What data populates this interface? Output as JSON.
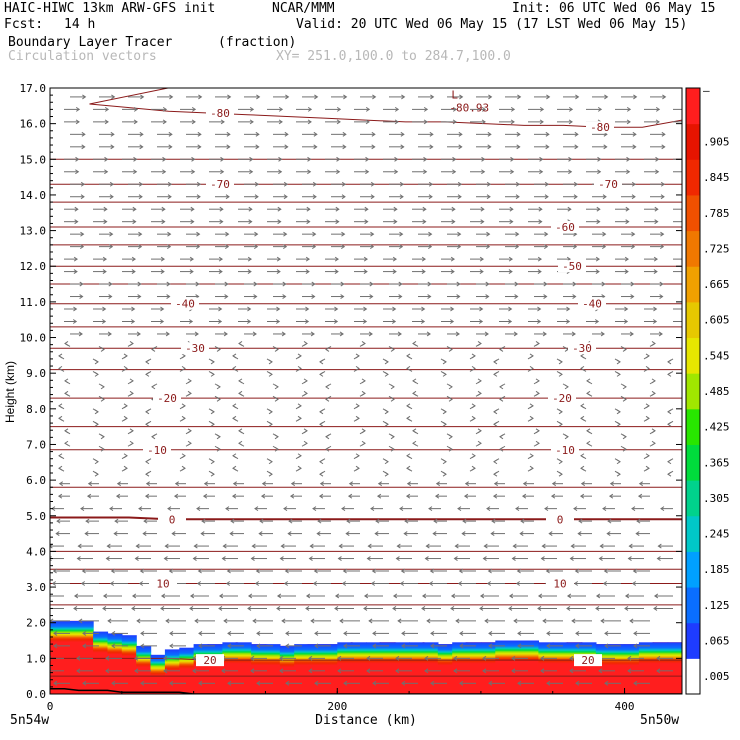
{
  "header": {
    "model": "HAIC-HIWC 13km ARW-GFS init",
    "institution": "NCAR/MMM",
    "init": "Init: 06 UTC Wed 06 May 15",
    "fcst_label": "Fcst:",
    "fcst_value": "14 h",
    "valid": "Valid: 20 UTC Wed 06 May 15 (17 LST Wed 06 May 15)",
    "field_name": "Boundary Layer Tracer",
    "field_units": "(fraction)",
    "vector_name": "Circulation vectors",
    "xy_range": "XY= 251.0,100.0 to 284.7,100.0"
  },
  "colors": {
    "contour": "#8b1a1a",
    "vector": "#707070",
    "axis": "#000000"
  },
  "chart_data": {
    "type": "heatmap",
    "ylabel": "Height (km)",
    "xlabel": "Distance (km)",
    "ylim": [
      0,
      17
    ],
    "xlim": [
      0,
      440
    ],
    "yticks": [
      "0.0",
      "1.0",
      "2.0",
      "3.0",
      "4.0",
      "5.0",
      "6.0",
      "7.0",
      "8.0",
      "9.0",
      "10.0",
      "11.0",
      "12.0",
      "13.0",
      "14.0",
      "15.0",
      "16.0",
      "17.0"
    ],
    "xticks": [
      {
        "value": 0,
        "label": "0"
      },
      {
        "value": 200,
        "label": "200"
      },
      {
        "value": 400,
        "label": "400"
      }
    ],
    "x_end_labels": {
      "left": "5n54w",
      "right": "5n50w"
    },
    "colorbar": {
      "labels": [
        ".005",
        ".065",
        ".125",
        ".185",
        ".245",
        ".305",
        ".365",
        ".425",
        ".485",
        ".545",
        ".605",
        ".665",
        ".725",
        ".785",
        ".845",
        ".905",
        "–"
      ],
      "colors": [
        "#ffffff",
        "#1e3cff",
        "#0a6eff",
        "#00a0ff",
        "#00c8c8",
        "#00d28c",
        "#00dc3c",
        "#28e600",
        "#a0e600",
        "#e6e600",
        "#e6c800",
        "#f0a000",
        "#f07800",
        "#f05000",
        "#f02800",
        "#e61400",
        "#ff1e1e"
      ]
    },
    "temperature_contours": [
      {
        "label": "-80",
        "y": [
          16.7,
          16.55,
          16.45,
          16.35,
          16.3,
          16.25,
          16.2,
          16.15,
          16.1,
          16.05,
          16.05,
          16.0,
          15.95,
          15.95,
          15.9,
          15.9,
          16.1
        ]
      },
      {
        "label": "-70",
        "y": [
          14.3,
          14.3,
          14.3,
          14.3,
          14.3,
          14.3,
          14.3,
          14.3,
          14.3,
          14.3,
          14.3,
          14.3,
          14.3,
          14.3,
          14.3,
          14.3,
          14.3
        ]
      },
      {
        "label": "-60",
        "y": [
          13.1,
          13.1,
          13.1,
          13.1,
          13.1,
          13.1,
          13.1,
          13.1,
          13.1,
          13.1,
          13.1,
          13.1,
          13.1,
          13.1,
          13.1,
          13.1,
          13.1
        ]
      },
      {
        "label": "-50",
        "y": [
          12.0,
          12.0,
          12.0,
          12.0,
          12.0,
          12.0,
          12.0,
          12.0,
          12.0,
          12.0,
          12.0,
          12.0,
          12.0,
          12.0,
          12.0,
          12.0,
          12.0
        ]
      },
      {
        "label": "-40",
        "y": [
          10.95,
          10.95,
          10.95,
          10.95,
          10.95,
          10.95,
          10.95,
          10.95,
          10.95,
          10.95,
          10.95,
          10.95,
          10.95,
          10.95,
          10.95,
          10.95,
          10.95
        ]
      },
      {
        "label": "-30",
        "y": [
          9.7,
          9.7,
          9.7,
          9.7,
          9.7,
          9.7,
          9.7,
          9.7,
          9.7,
          9.7,
          9.7,
          9.7,
          9.7,
          9.7,
          9.7,
          9.7,
          9.7
        ]
      },
      {
        "label": "-20",
        "y": [
          8.3,
          8.3,
          8.3,
          8.3,
          8.3,
          8.3,
          8.3,
          8.3,
          8.3,
          8.3,
          8.3,
          8.3,
          8.3,
          8.3,
          8.3,
          8.3,
          8.3
        ]
      },
      {
        "label": "-10",
        "y": [
          6.85,
          6.85,
          6.85,
          6.85,
          6.85,
          6.85,
          6.85,
          6.85,
          6.85,
          6.85,
          6.85,
          6.85,
          6.85,
          6.85,
          6.85,
          6.85,
          6.85
        ]
      },
      {
        "label": "0",
        "y": [
          4.95,
          4.95,
          4.95,
          4.9,
          4.9,
          4.9,
          4.9,
          4.9,
          4.9,
          4.9,
          4.9,
          4.9,
          4.9,
          4.9,
          4.9,
          4.9,
          4.9
        ]
      },
      {
        "label": "10",
        "y": [
          3.1,
          3.1,
          3.1,
          3.1,
          3.1,
          3.1,
          3.1,
          3.1,
          3.1,
          3.1,
          3.1,
          3.1,
          3.1,
          3.1,
          3.1,
          3.1,
          3.1
        ]
      },
      {
        "label": "20",
        "y": [
          1.0,
          1.0,
          1.0,
          1.0,
          0.95,
          0.95,
          0.95,
          0.95,
          0.95,
          0.95,
          0.95,
          0.95,
          0.95,
          0.95,
          0.95,
          0.95,
          0.95
        ]
      }
    ],
    "other_isotherms_y": [
      15.0,
      13.8,
      12.6,
      11.5,
      10.3,
      9.1,
      7.5,
      5.8,
      4.0,
      3.5,
      2.5,
      0.5
    ],
    "low_label": {
      "letter": "L",
      "value": "-80.93",
      "x": 285,
      "y": 16.6
    },
    "boundary_layer_top_km": [
      2.05,
      2.05,
      2.05,
      1.75,
      1.7,
      1.65,
      1.35,
      1.1,
      1.05,
      1.25,
      1.3,
      1.4,
      1.4,
      1.45,
      1.4,
      1.4,
      1.35,
      1.35,
      1.4,
      1.4,
      1.4,
      1.45,
      1.4,
      1.45,
      1.45,
      1.4,
      1.45,
      1.4,
      1.4,
      1.45,
      1.45,
      1.45,
      1.5,
      1.5,
      1.45,
      1.4,
      1.45,
      1.45,
      1.4,
      1.4,
      1.4,
      1.4,
      1.45,
      1.45,
      1.45
    ],
    "terrain_km": [
      0.15,
      0.15,
      0.1,
      0.1,
      0.1,
      0.05,
      0.05,
      0.05,
      0.05,
      0.05,
      0.0,
      0.0,
      0.0,
      0.0,
      0.0,
      0.0,
      0.0,
      0.0,
      0.0,
      0.0,
      0.0,
      0.0,
      0.0,
      0.0,
      0.0,
      0.0,
      0.0,
      0.0,
      0.0,
      0.0,
      0.0,
      0.0,
      0.0,
      0.0,
      0.0,
      0.0,
      0.0,
      0.0,
      0.0,
      0.0,
      0.0,
      0.0,
      0.0,
      0.0,
      0.0
    ]
  }
}
